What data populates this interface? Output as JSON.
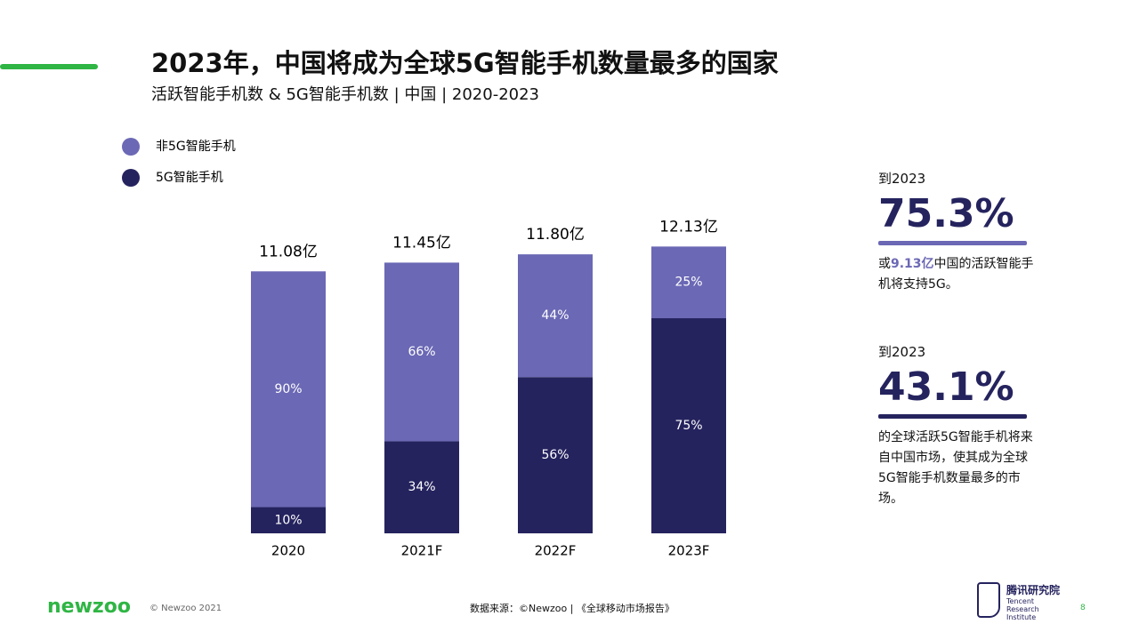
{
  "chart_data": {
    "type": "bar",
    "stacked": true,
    "categories": [
      "2020",
      "2021F",
      "2022F",
      "2023F"
    ],
    "totals": {
      "values": [
        11.08,
        11.45,
        11.8,
        12.13
      ],
      "value_labels": [
        "11.08亿",
        "11.45亿",
        "11.80亿",
        "12.13亿"
      ]
    },
    "series": [
      {
        "name": "5G智能手机",
        "color": "#25235e",
        "values": [
          10,
          34,
          56,
          75
        ],
        "value_labels": [
          "10%",
          "34%",
          "56%",
          "75%"
        ]
      },
      {
        "name": "非5G智能手机",
        "color": "#6b68b5",
        "values": [
          90,
          66,
          44,
          25
        ],
        "value_labels": [
          "90%",
          "66%",
          "44%",
          "25%"
        ]
      }
    ]
  },
  "slide": {
    "title": "2023年，中国将成为全球5G智能手机数量最多的国家",
    "subtitle": "活跃智能手机数 & 5G智能手机数 | 中国 | 2020-2023",
    "stats": [
      {
        "lead": "到2023",
        "figure": "75.3%",
        "text": [
          "或",
          "9.13亿",
          "中国的活跃智能手机将支持5G。"
        ]
      },
      {
        "lead": "到2023",
        "figure": "43.1%",
        "text": [
          "的全球活跃5G智能手机将来自中国市场，使其成为全球5G智能手机数量最多的市场。"
        ]
      }
    ],
    "footer": {
      "brand": "newzoo",
      "copyright": "© Newzoo 2021",
      "source": "数据来源：©Newzoo | 《全球移动市场报告》",
      "org": "腾讯研究院",
      "org_en": "Tencent Research Institute",
      "page": "8"
    }
  }
}
